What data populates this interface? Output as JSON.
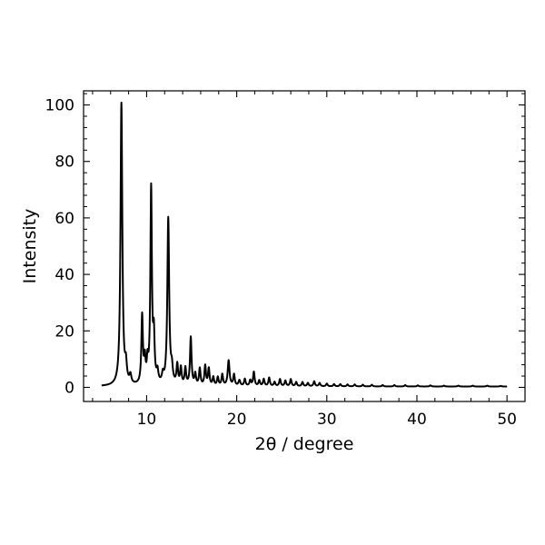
{
  "chart_data": {
    "type": "line",
    "title": "",
    "xlabel": "2θ / degree",
    "ylabel": "Intensity",
    "xlim": [
      3,
      52
    ],
    "ylim": [
      -5,
      105
    ],
    "xticks": [
      10,
      20,
      30,
      40,
      50
    ],
    "yticks": [
      0,
      20,
      40,
      60,
      80,
      100
    ],
    "grid": false,
    "legend": "none",
    "colors": {
      "line": "#000000",
      "axes": "#000000",
      "background": "#ffffff"
    },
    "series": [
      {
        "baseline": 0.3,
        "x_range": [
          5,
          50
        ],
        "peaks": [
          [
            7.2,
            100,
            0.12
          ],
          [
            7.7,
            6,
            0.12
          ],
          [
            8.2,
            3,
            0.12
          ],
          [
            9.5,
            24,
            0.1
          ],
          [
            9.8,
            8,
            0.1
          ],
          [
            10.1,
            7,
            0.1
          ],
          [
            10.5,
            69,
            0.1
          ],
          [
            10.8,
            16,
            0.1
          ],
          [
            11.2,
            4,
            0.12
          ],
          [
            11.8,
            3,
            0.12
          ],
          [
            12.4,
            59,
            0.12
          ],
          [
            12.8,
            5,
            0.12
          ],
          [
            13.4,
            7,
            0.1
          ],
          [
            13.8,
            6,
            0.1
          ],
          [
            14.3,
            6,
            0.1
          ],
          [
            14.9,
            17,
            0.1
          ],
          [
            15.4,
            4,
            0.1
          ],
          [
            15.9,
            6,
            0.1
          ],
          [
            16.5,
            7,
            0.1
          ],
          [
            16.9,
            6,
            0.1
          ],
          [
            17.4,
            3,
            0.1
          ],
          [
            17.9,
            3,
            0.1
          ],
          [
            18.4,
            4,
            0.1
          ],
          [
            19.1,
            9,
            0.12
          ],
          [
            19.7,
            4,
            0.1
          ],
          [
            20.3,
            2,
            0.12
          ],
          [
            20.9,
            2.5,
            0.1
          ],
          [
            21.5,
            2,
            0.1
          ],
          [
            21.9,
            5,
            0.1
          ],
          [
            22.5,
            2,
            0.1
          ],
          [
            23.0,
            2.5,
            0.1
          ],
          [
            23.6,
            3,
            0.1
          ],
          [
            24.2,
            1.5,
            0.1
          ],
          [
            24.8,
            2.5,
            0.1
          ],
          [
            25.4,
            2,
            0.1
          ],
          [
            26.0,
            2.5,
            0.1
          ],
          [
            26.6,
            1.5,
            0.1
          ],
          [
            27.3,
            1.5,
            0.1
          ],
          [
            27.9,
            1.2,
            0.1
          ],
          [
            28.6,
            1.8,
            0.1
          ],
          [
            29.2,
            1.2,
            0.1
          ],
          [
            30.0,
            1,
            0.1
          ],
          [
            30.8,
            0.8,
            0.1
          ],
          [
            31.5,
            0.8,
            0.1
          ],
          [
            32.3,
            0.7,
            0.1
          ],
          [
            33.1,
            0.7,
            0.1
          ],
          [
            34.0,
            0.6,
            0.1
          ],
          [
            35.0,
            0.6,
            0.1
          ],
          [
            36.2,
            0.5,
            0.1
          ],
          [
            37.5,
            0.5,
            0.1
          ],
          [
            38.7,
            0.5,
            0.1
          ],
          [
            40.1,
            0.4,
            0.1
          ],
          [
            41.5,
            0.4,
            0.1
          ],
          [
            43.0,
            0.3,
            0.1
          ],
          [
            44.6,
            0.3,
            0.1
          ],
          [
            46.2,
            0.3,
            0.1
          ],
          [
            47.8,
            0.3,
            0.1
          ],
          [
            49.3,
            0.2,
            0.1
          ]
        ]
      }
    ]
  }
}
